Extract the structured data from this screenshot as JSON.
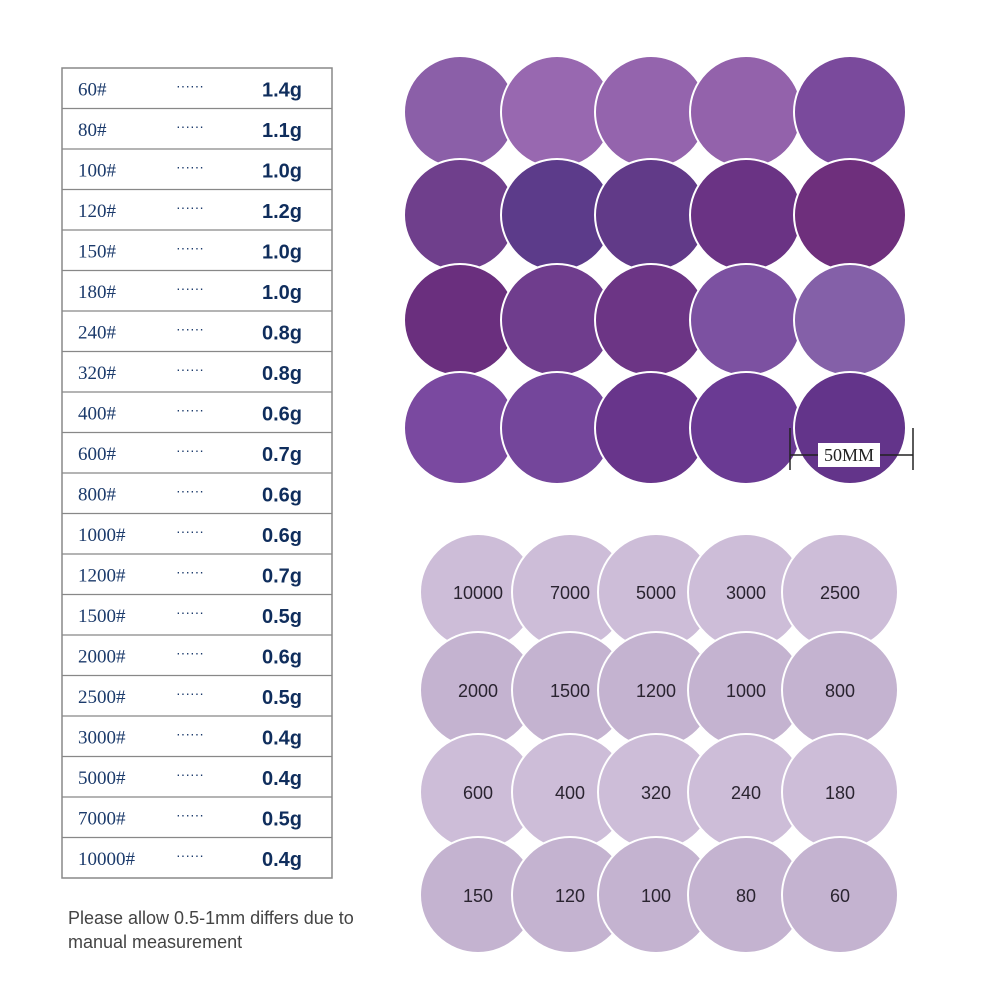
{
  "table": {
    "leader": "······",
    "rows": [
      [
        "60#",
        "1.4g"
      ],
      [
        "80#",
        "1.1g"
      ],
      [
        "100#",
        "1.0g"
      ],
      [
        "120#",
        "1.2g"
      ],
      [
        "150#",
        "1.0g"
      ],
      [
        "180#",
        "1.0g"
      ],
      [
        "240#",
        "0.8g"
      ],
      [
        "320#",
        "0.8g"
      ],
      [
        "400#",
        "0.6g"
      ],
      [
        "600#",
        "0.7g"
      ],
      [
        "800#",
        "0.6g"
      ],
      [
        "1000#",
        "0.6g"
      ],
      [
        "1200#",
        "0.7g"
      ],
      [
        "1500#",
        "0.5g"
      ],
      [
        "2000#",
        "0.6g"
      ],
      [
        "2500#",
        "0.5g"
      ],
      [
        "3000#",
        "0.4g"
      ],
      [
        "5000#",
        "0.4g"
      ],
      [
        "7000#",
        "0.5g"
      ],
      [
        "10000#",
        "0.4g"
      ]
    ]
  },
  "note": "Please allow 0.5-1mm differs due to manual measurement",
  "scale_label": "50MM",
  "disc_labels": [
    "10000",
    "7000",
    "5000",
    "3000",
    "2500",
    "2000",
    "1500",
    "1200",
    "1000",
    "800",
    "600",
    "400",
    "320",
    "240",
    "180",
    "150",
    "120",
    "100",
    "80",
    "60"
  ]
}
